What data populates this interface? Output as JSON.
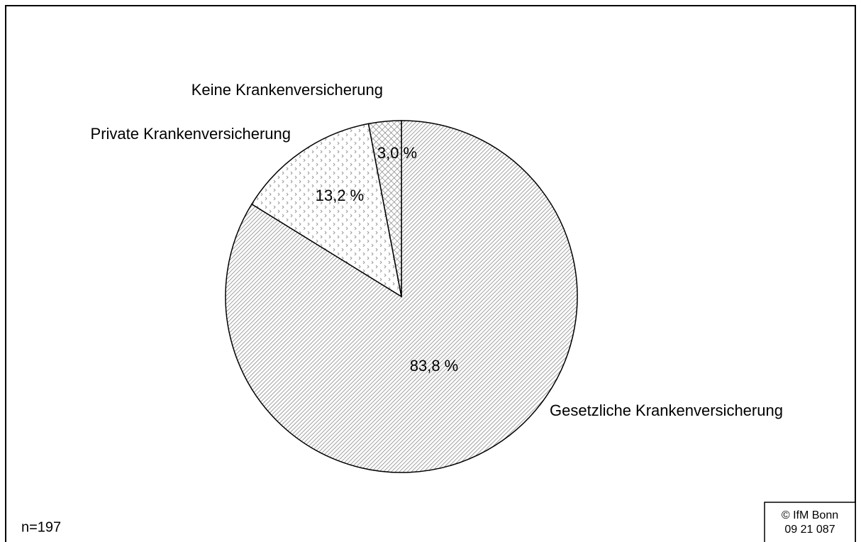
{
  "chart_data": {
    "type": "pie",
    "categories": [
      "Gesetzliche Krankenversicherung",
      "Private Krankenversicherung",
      "Keine Krankenversicherung"
    ],
    "values": [
      83.8,
      13.2,
      3.0
    ],
    "value_labels": [
      "83,8 %",
      "13,2 %",
      "3,0 %"
    ],
    "patterns": [
      "diagonal",
      "dots",
      "crosshatch"
    ],
    "notes": [
      "n=197",
      "© IfM Bonn",
      "09 21 087"
    ]
  }
}
